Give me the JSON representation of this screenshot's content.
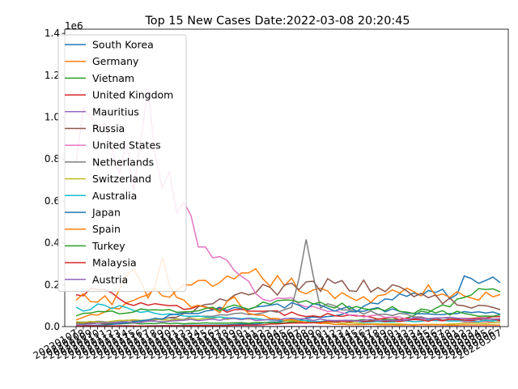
{
  "chart_data": {
    "type": "line",
    "title": "Top 15 New Cases Date:2022-03-08 20:20:45",
    "xlabel": "",
    "ylabel": "",
    "y_scale_label": "1e6",
    "ylim": [
      0,
      1420000
    ],
    "y_ticks": [
      0,
      200000,
      400000,
      600000,
      800000,
      1000000,
      1200000,
      1400000
    ],
    "y_tick_labels": [
      "0.0",
      "0.2",
      "0.4",
      "0.6",
      "0.8",
      "1.0",
      "1.2",
      "1.4"
    ],
    "x_start": "2022-01-07",
    "x_end": "2022-03-07",
    "x_tick_labels_note": "dates 2022-01-07 .. 2022-03-07, rotated and overlapping",
    "legend_position": "upper left",
    "grid": false,
    "series": [
      {
        "name": "South Korea",
        "color": "#1f77b4",
        "anchors": [
          [
            0,
            3000
          ],
          [
            10,
            4000
          ],
          [
            20,
            7000
          ],
          [
            25,
            14000
          ],
          [
            30,
            30000
          ],
          [
            35,
            50000
          ],
          [
            40,
            90000
          ],
          [
            45,
            170000
          ],
          [
            50,
            165000
          ],
          [
            52,
            140000
          ],
          [
            54,
            220000
          ],
          [
            56,
            200000
          ],
          [
            57,
            265000
          ],
          [
            59,
            200000
          ]
        ]
      },
      {
        "name": "Germany",
        "color": "#ff7f0e",
        "anchors": [
          [
            0,
            30000
          ],
          [
            5,
            80000
          ],
          [
            10,
            150000
          ],
          [
            15,
            180000
          ],
          [
            20,
            200000
          ],
          [
            25,
            240000
          ],
          [
            30,
            200000
          ],
          [
            35,
            150000
          ],
          [
            40,
            130000
          ],
          [
            45,
            180000
          ],
          [
            50,
            170000
          ],
          [
            55,
            130000
          ],
          [
            59,
            170000
          ]
        ]
      },
      {
        "name": "Vietnam",
        "color": "#2ca02c",
        "anchors": [
          [
            0,
            15000
          ],
          [
            10,
            15000
          ],
          [
            20,
            16000
          ],
          [
            30,
            20000
          ],
          [
            40,
            30000
          ],
          [
            45,
            40000
          ],
          [
            50,
            80000
          ],
          [
            55,
            150000
          ],
          [
            57,
            175000
          ],
          [
            59,
            150000
          ]
        ]
      },
      {
        "name": "United Kingdom",
        "color": "#d62728",
        "anchors": [
          [
            0,
            140000
          ],
          [
            3,
            180000
          ],
          [
            6,
            120000
          ],
          [
            10,
            100000
          ],
          [
            15,
            90000
          ],
          [
            20,
            80000
          ],
          [
            25,
            70000
          ],
          [
            30,
            60000
          ],
          [
            35,
            55000
          ],
          [
            40,
            45000
          ],
          [
            45,
            40000
          ],
          [
            50,
            35000
          ],
          [
            55,
            40000
          ],
          [
            59,
            50000
          ]
        ]
      },
      {
        "name": "Mauritius",
        "color": "#9467bd",
        "anchors": [
          [
            0,
            100
          ],
          [
            20,
            100
          ],
          [
            40,
            200
          ],
          [
            59,
            300
          ]
        ]
      },
      {
        "name": "Russia",
        "color": "#8c564b",
        "anchors": [
          [
            0,
            16000
          ],
          [
            5,
            17000
          ],
          [
            10,
            25000
          ],
          [
            15,
            60000
          ],
          [
            20,
            120000
          ],
          [
            25,
            170000
          ],
          [
            30,
            180000
          ],
          [
            35,
            200000
          ],
          [
            40,
            190000
          ],
          [
            45,
            170000
          ],
          [
            50,
            140000
          ],
          [
            55,
            100000
          ],
          [
            59,
            80000
          ]
        ]
      },
      {
        "name": "United States",
        "color": "#e377c2",
        "anchors": [
          [
            0,
            700000
          ],
          [
            2,
            1200000
          ],
          [
            4,
            900000
          ],
          [
            6,
            800000
          ],
          [
            8,
            700000
          ],
          [
            10,
            1100000
          ],
          [
            12,
            800000
          ],
          [
            14,
            600000
          ],
          [
            16,
            450000
          ],
          [
            18,
            350000
          ],
          [
            20,
            300000
          ],
          [
            22,
            250000
          ],
          [
            24,
            200000
          ],
          [
            26,
            150000
          ],
          [
            28,
            130000
          ],
          [
            30,
            120000
          ],
          [
            32,
            100000
          ],
          [
            34,
            80000
          ],
          [
            36,
            70000
          ],
          [
            38,
            60000
          ],
          [
            40,
            55000
          ],
          [
            42,
            50000
          ],
          [
            44,
            45000
          ],
          [
            46,
            40000
          ],
          [
            48,
            35000
          ],
          [
            50,
            30000
          ],
          [
            52,
            28000
          ],
          [
            54,
            25000
          ],
          [
            56,
            25000
          ],
          [
            59,
            20000
          ]
        ]
      },
      {
        "name": "Netherlands",
        "color": "#7f7f7f",
        "anchors": [
          [
            0,
            20000
          ],
          [
            10,
            30000
          ],
          [
            20,
            50000
          ],
          [
            25,
            70000
          ],
          [
            30,
            80000
          ],
          [
            32,
            380000
          ],
          [
            34,
            100000
          ],
          [
            40,
            70000
          ],
          [
            45,
            60000
          ],
          [
            50,
            40000
          ],
          [
            55,
            30000
          ],
          [
            59,
            25000
          ]
        ]
      },
      {
        "name": "Switzerland",
        "color": "#bcbd22",
        "anchors": [
          [
            0,
            20000
          ],
          [
            10,
            30000
          ],
          [
            15,
            35000
          ],
          [
            20,
            40000
          ],
          [
            25,
            35000
          ],
          [
            30,
            25000
          ],
          [
            35,
            20000
          ],
          [
            40,
            15000
          ],
          [
            45,
            12000
          ],
          [
            50,
            10000
          ],
          [
            55,
            15000
          ],
          [
            59,
            20000
          ]
        ]
      },
      {
        "name": "Australia",
        "color": "#17becf",
        "anchors": [
          [
            0,
            80000
          ],
          [
            5,
            100000
          ],
          [
            10,
            70000
          ],
          [
            15,
            50000
          ],
          [
            20,
            40000
          ],
          [
            25,
            35000
          ],
          [
            30,
            30000
          ],
          [
            35,
            25000
          ],
          [
            40,
            22000
          ],
          [
            45,
            25000
          ],
          [
            50,
            30000
          ],
          [
            55,
            25000
          ],
          [
            59,
            30000
          ]
        ]
      },
      {
        "name": "Japan",
        "color": "#1f77b4",
        "anchors": [
          [
            0,
            2000
          ],
          [
            5,
            10000
          ],
          [
            10,
            30000
          ],
          [
            15,
            60000
          ],
          [
            20,
            80000
          ],
          [
            25,
            90000
          ],
          [
            30,
            100000
          ],
          [
            35,
            90000
          ],
          [
            40,
            80000
          ],
          [
            45,
            75000
          ],
          [
            50,
            70000
          ],
          [
            55,
            65000
          ],
          [
            59,
            60000
          ]
        ]
      },
      {
        "name": "Spain",
        "color": "#ff7f0e",
        "anchors": [
          [
            0,
            150000
          ],
          [
            5,
            120000
          ],
          [
            8,
            330000
          ],
          [
            10,
            130000
          ],
          [
            12,
            300000
          ],
          [
            14,
            120000
          ],
          [
            16,
            100000
          ],
          [
            18,
            90000
          ],
          [
            20,
            80000
          ],
          [
            22,
            130000
          ],
          [
            24,
            60000
          ],
          [
            26,
            50000
          ],
          [
            28,
            40000
          ],
          [
            30,
            30000
          ],
          [
            32,
            20000
          ],
          [
            34,
            15000
          ],
          [
            36,
            12000
          ],
          [
            38,
            10000
          ],
          [
            40,
            10000
          ],
          [
            45,
            8000
          ],
          [
            50,
            8000
          ],
          [
            55,
            8000
          ],
          [
            59,
            8000
          ]
        ]
      },
      {
        "name": "Turkey",
        "color": "#2ca02c",
        "anchors": [
          [
            0,
            60000
          ],
          [
            5,
            70000
          ],
          [
            10,
            75000
          ],
          [
            15,
            80000
          ],
          [
            20,
            90000
          ],
          [
            25,
            100000
          ],
          [
            30,
            110000
          ],
          [
            35,
            100000
          ],
          [
            40,
            90000
          ],
          [
            45,
            80000
          ],
          [
            50,
            70000
          ],
          [
            55,
            60000
          ],
          [
            59,
            55000
          ]
        ]
      },
      {
        "name": "Malaysia",
        "color": "#d62728",
        "anchors": [
          [
            0,
            3000
          ],
          [
            10,
            3000
          ],
          [
            15,
            4000
          ],
          [
            20,
            5000
          ],
          [
            25,
            8000
          ],
          [
            30,
            15000
          ],
          [
            35,
            22000
          ],
          [
            40,
            25000
          ],
          [
            45,
            28000
          ],
          [
            50,
            30000
          ],
          [
            55,
            32000
          ],
          [
            59,
            33000
          ]
        ]
      },
      {
        "name": "Austria",
        "color": "#9467bd",
        "anchors": [
          [
            0,
            10000
          ],
          [
            10,
            25000
          ],
          [
            15,
            30000
          ],
          [
            20,
            35000
          ],
          [
            25,
            35000
          ],
          [
            30,
            35000
          ],
          [
            35,
            30000
          ],
          [
            40,
            30000
          ],
          [
            45,
            35000
          ],
          [
            50,
            40000
          ],
          [
            55,
            40000
          ],
          [
            59,
            35000
          ]
        ]
      }
    ]
  }
}
